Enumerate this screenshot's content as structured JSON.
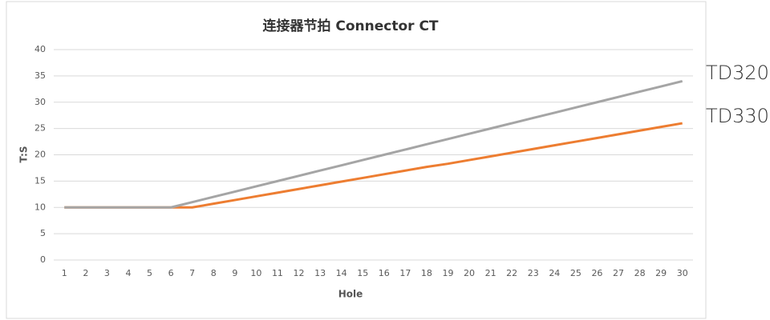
{
  "chart_data": {
    "type": "line",
    "title": "连接器节拍 Connector CT",
    "x_label": "Hole",
    "y_label": "T:S",
    "categories": [
      1,
      2,
      3,
      4,
      5,
      6,
      7,
      8,
      9,
      10,
      11,
      12,
      13,
      14,
      15,
      16,
      17,
      18,
      19,
      20,
      21,
      22,
      23,
      24,
      25,
      26,
      27,
      28,
      29,
      30
    ],
    "series": [
      {
        "name": "TD320",
        "color": "#a5a5a5",
        "values": [
          10,
          10,
          10,
          10,
          10,
          10,
          11,
          12,
          13,
          14,
          15,
          16,
          17,
          18,
          19,
          20,
          21,
          22,
          23,
          24,
          25,
          26,
          27,
          28,
          29,
          30,
          31,
          32,
          33,
          34
        ]
      },
      {
        "name": "TD330",
        "color": "#ed7d31",
        "values": [
          10,
          10,
          10,
          10,
          10,
          10,
          10,
          10.7,
          11.4,
          12.1,
          12.8,
          13.5,
          14.2,
          14.9,
          15.6,
          16.3,
          17.0,
          17.7,
          18.3,
          19.0,
          19.7,
          20.4,
          21.1,
          21.8,
          22.5,
          23.2,
          23.9,
          24.6,
          25.3,
          26
        ]
      }
    ],
    "ylim": [
      0,
      40
    ],
    "yticks": [
      0,
      5,
      10,
      15,
      20,
      25,
      30,
      35,
      40
    ],
    "grid": true
  }
}
